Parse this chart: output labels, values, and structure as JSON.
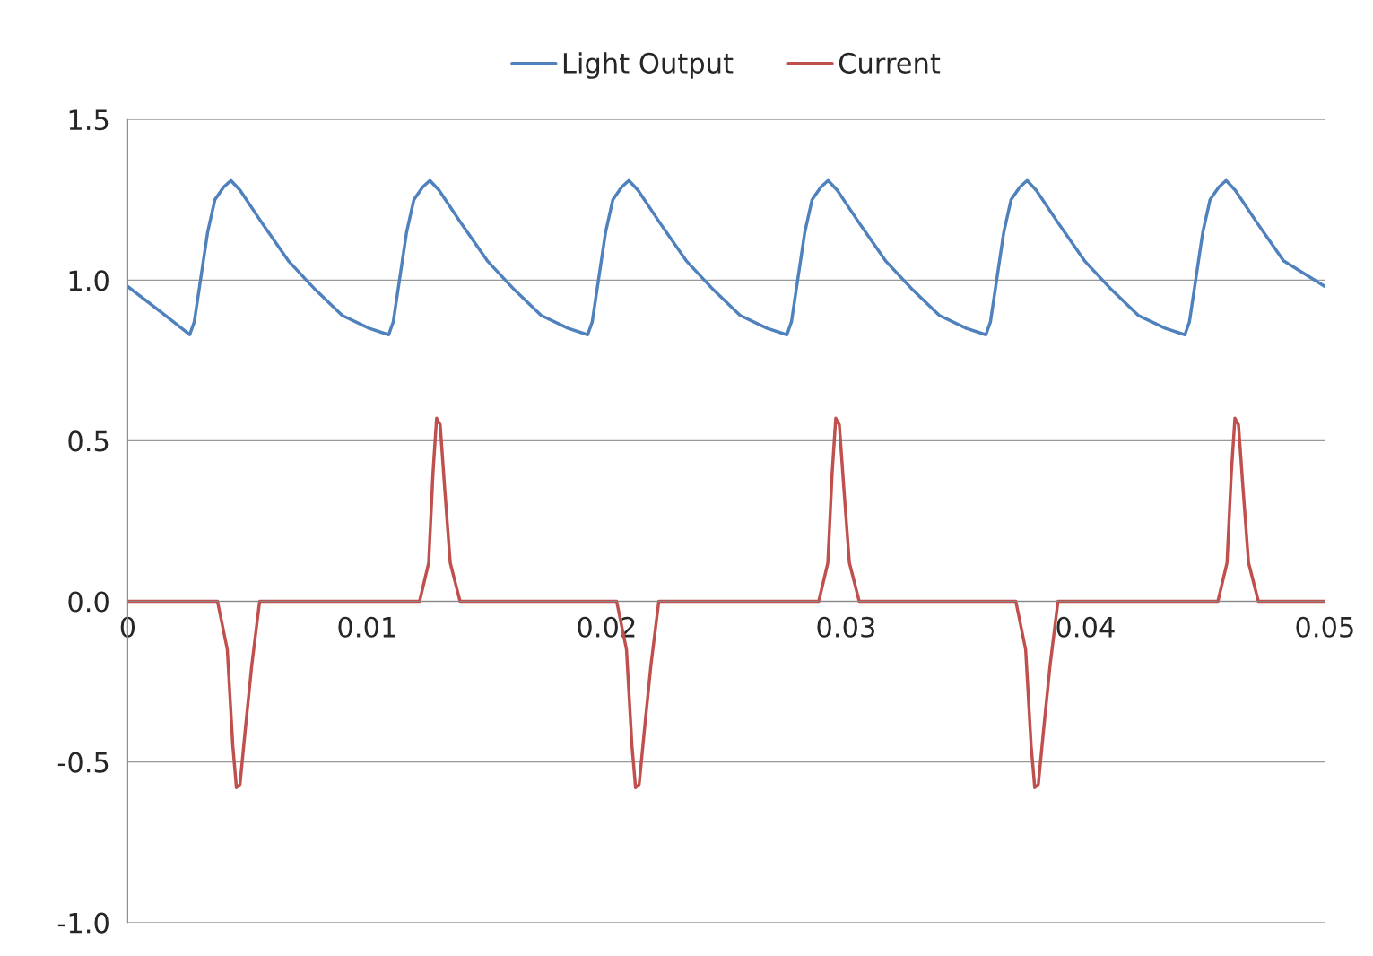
{
  "chart_data": {
    "type": "line",
    "legend": "top",
    "grid": "y",
    "xlim": [
      0,
      0.05
    ],
    "ylim": [
      -1.0,
      1.5
    ],
    "xticks": [
      0,
      0.01,
      0.02,
      0.03,
      0.04,
      0.05
    ],
    "yticks": [
      {
        "value": -1.0,
        "label": "-1.0"
      },
      {
        "value": -0.5,
        "label": "-0.5"
      },
      {
        "value": 0,
        "label": "0.0"
      },
      {
        "value": 0.5,
        "label": "0.5"
      },
      {
        "value": 1.0,
        "label": "1.0"
      },
      {
        "value": 1.5,
        "label": "1.5"
      }
    ],
    "series": [
      {
        "name": "Light Output",
        "color": "#4f81bd",
        "x": [
          0,
          0.0014,
          0.00259,
          0.00278,
          0.00304,
          0.00334,
          0.00364,
          0.00401,
          0.00431,
          0.00469,
          0.00559,
          0.00671,
          0.00784,
          0.00896,
          0.01009,
          0.0109,
          0.01109,
          0.01135,
          0.01165,
          0.01195,
          0.01232,
          0.01262,
          0.013,
          0.0139,
          0.01502,
          0.01615,
          0.01727,
          0.0184,
          0.01921,
          0.0194,
          0.01966,
          0.01996,
          0.02026,
          0.02063,
          0.02093,
          0.02131,
          0.02221,
          0.02333,
          0.02446,
          0.02558,
          0.02671,
          0.02753,
          0.02772,
          0.02798,
          0.02828,
          0.02858,
          0.02895,
          0.02925,
          0.02963,
          0.03053,
          0.03165,
          0.03278,
          0.0339,
          0.03503,
          0.03584,
          0.03603,
          0.03629,
          0.03659,
          0.03689,
          0.03726,
          0.03756,
          0.03794,
          0.03884,
          0.03996,
          0.04109,
          0.04221,
          0.04334,
          0.04415,
          0.04434,
          0.0446,
          0.0449,
          0.0452,
          0.04557,
          0.04587,
          0.04625,
          0.04715,
          0.04827,
          0.05
        ],
        "values": [
          0.98,
          0.9,
          0.83,
          0.87,
          1.0,
          1.15,
          1.25,
          1.29,
          1.31,
          1.28,
          1.18,
          1.06,
          0.97,
          0.89,
          0.85,
          0.83,
          0.87,
          1.0,
          1.15,
          1.25,
          1.29,
          1.31,
          1.28,
          1.18,
          1.06,
          0.97,
          0.89,
          0.85,
          0.83,
          0.87,
          1.0,
          1.15,
          1.25,
          1.29,
          1.31,
          1.28,
          1.18,
          1.06,
          0.97,
          0.89,
          0.85,
          0.83,
          0.87,
          1.0,
          1.15,
          1.25,
          1.29,
          1.31,
          1.28,
          1.18,
          1.06,
          0.97,
          0.89,
          0.85,
          0.83,
          0.87,
          1.0,
          1.15,
          1.25,
          1.29,
          1.31,
          1.28,
          1.18,
          1.06,
          0.97,
          0.89,
          0.85,
          0.83,
          0.87,
          1.0,
          1.15,
          1.25,
          1.29,
          1.31,
          1.28,
          1.18,
          1.06,
          0.98
        ]
      },
      {
        "name": "Current",
        "color": "#c0504d",
        "x": [
          0,
          0.00375,
          0.00416,
          0.00439,
          0.00454,
          0.00469,
          0.00491,
          0.00518,
          0.00551,
          0.01219,
          0.01257,
          0.01275,
          0.0129,
          0.01305,
          0.01324,
          0.01347,
          0.01388,
          0.02042,
          0.02083,
          0.02106,
          0.02121,
          0.02136,
          0.02158,
          0.02185,
          0.02218,
          0.02886,
          0.02924,
          0.02942,
          0.02957,
          0.02972,
          0.02991,
          0.03014,
          0.03055,
          0.03709,
          0.0375,
          0.03773,
          0.03788,
          0.03803,
          0.03825,
          0.03852,
          0.03885,
          0.04553,
          0.04591,
          0.04609,
          0.04624,
          0.04639,
          0.04658,
          0.04681,
          0.04722,
          0.05
        ],
        "values": [
          0,
          0,
          -0.15,
          -0.45,
          -0.58,
          -0.57,
          -0.4,
          -0.2,
          0,
          0,
          0.12,
          0.4,
          0.57,
          0.55,
          0.35,
          0.12,
          0,
          0,
          -0.15,
          -0.45,
          -0.58,
          -0.57,
          -0.4,
          -0.2,
          0,
          0,
          0.12,
          0.4,
          0.57,
          0.55,
          0.35,
          0.12,
          0,
          0,
          -0.15,
          -0.45,
          -0.58,
          -0.57,
          -0.4,
          -0.2,
          0,
          0,
          0.12,
          0.4,
          0.57,
          0.55,
          0.35,
          0.12,
          0,
          0
        ]
      }
    ]
  }
}
